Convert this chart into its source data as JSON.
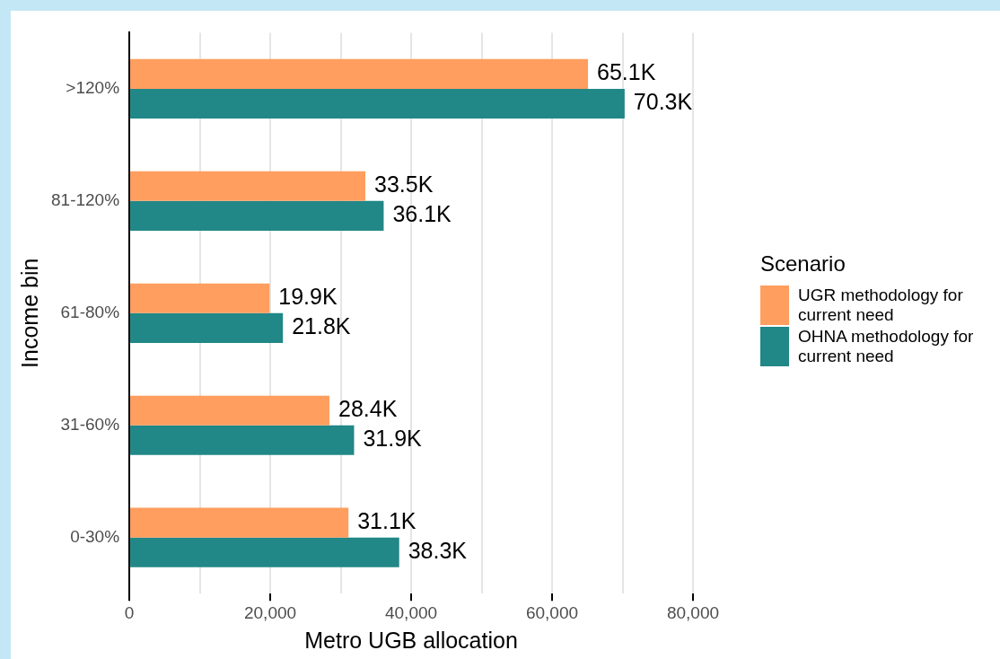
{
  "chart_data": {
    "type": "bar",
    "orientation": "horizontal",
    "xlabel": "Metro UGB allocation",
    "ylabel": "Income bin",
    "legend_title": "Scenario",
    "legend": "right",
    "categories": [
      ">120%",
      "81-120%",
      "61-80%",
      "31-60%",
      "0-30%"
    ],
    "series": [
      {
        "name": "UGR methodology for current need",
        "color": "#ff9e5e",
        "values": [
          65100,
          33500,
          19900,
          28400,
          31100
        ],
        "value_labels": [
          "65.1K",
          "33.5K",
          "19.9K",
          "28.4K",
          "31.1K"
        ]
      },
      {
        "name": "OHNA methodology for current need",
        "color": "#218787",
        "values": [
          70300,
          36100,
          21800,
          31900,
          38300
        ],
        "value_labels": [
          "70.3K",
          "36.1K",
          "21.8K",
          "31.9K",
          "38.3K"
        ]
      }
    ],
    "xlim": [
      0,
      80000
    ],
    "xticks": [
      0,
      {
        "value": 10000,
        "label": null
      },
      {
        "value": 20000,
        "label": "20,000"
      },
      {
        "value": 30000,
        "label": null
      },
      {
        "value": 40000,
        "label": "40,000"
      },
      {
        "value": 50000,
        "label": null
      },
      {
        "value": 60000,
        "label": "60,000"
      },
      {
        "value": 70000,
        "label": null
      },
      {
        "value": 80000,
        "label": "80,000"
      }
    ],
    "grid": "x"
  }
}
